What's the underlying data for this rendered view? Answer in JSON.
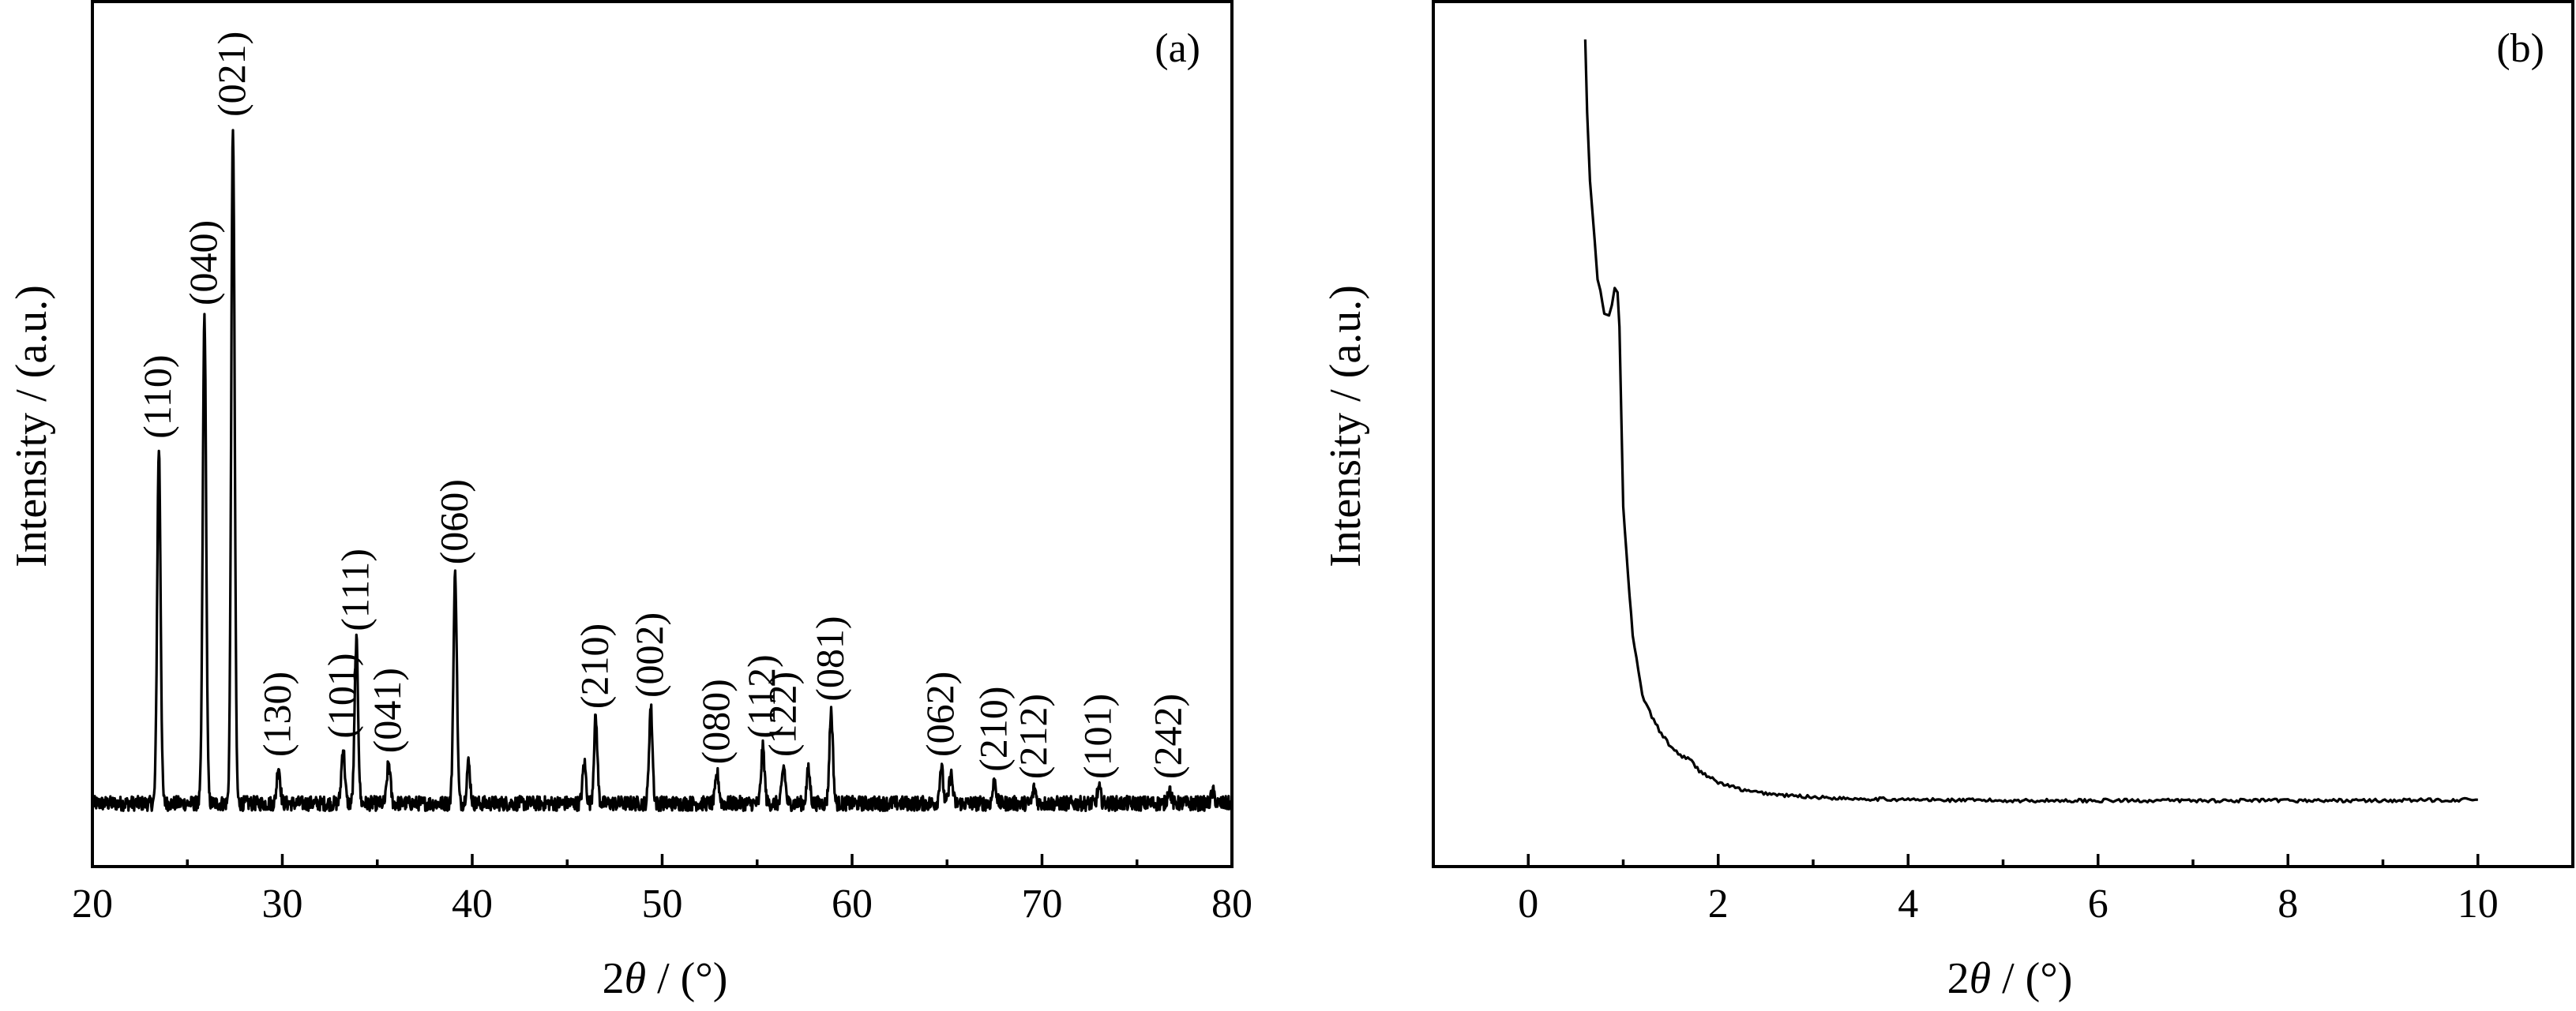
{
  "chart_data": [
    {
      "type": "line",
      "panel_label": "(a)",
      "xlabel_prefix": "2",
      "xlabel_symbol": "θ",
      "xlabel_suffix": " / (°)",
      "ylabel": "Intensity / (a.u.)",
      "xlim": [
        20,
        80
      ],
      "ylim": [
        0,
        1
      ],
      "x_ticks": [
        20,
        30,
        40,
        50,
        60,
        70,
        80
      ],
      "y_ticks_labeled": false,
      "grid": false,
      "baseline": 0.085,
      "peaks": [
        {
          "x": 23.5,
          "y": 0.565,
          "label": "(110)"
        },
        {
          "x": 25.9,
          "y": 0.745,
          "label": "(040)"
        },
        {
          "x": 27.4,
          "y": 1.0,
          "label": "(021)"
        },
        {
          "x": 29.8,
          "y": 0.135,
          "label": "(130)"
        },
        {
          "x": 33.2,
          "y": 0.16,
          "label": "(101)"
        },
        {
          "x": 33.9,
          "y": 0.305,
          "label": "(111)"
        },
        {
          "x": 35.6,
          "y": 0.14,
          "label": "(041)"
        },
        {
          "x": 39.1,
          "y": 0.395,
          "label": "(060)"
        },
        {
          "x": 39.8,
          "y": 0.14,
          "label": ""
        },
        {
          "x": 45.9,
          "y": 0.14,
          "label": ""
        },
        {
          "x": 46.5,
          "y": 0.2,
          "label": "(210)"
        },
        {
          "x": 49.4,
          "y": 0.215,
          "label": "(002)"
        },
        {
          "x": 52.9,
          "y": 0.125,
          "label": "(080)"
        },
        {
          "x": 55.3,
          "y": 0.16,
          "label": "(112)"
        },
        {
          "x": 56.4,
          "y": 0.135,
          "label": "(122)"
        },
        {
          "x": 57.7,
          "y": 0.13,
          "label": ""
        },
        {
          "x": 58.9,
          "y": 0.21,
          "label": "(081)"
        },
        {
          "x": 64.7,
          "y": 0.135,
          "label": "(062)"
        },
        {
          "x": 65.2,
          "y": 0.125,
          "label": ""
        },
        {
          "x": 67.5,
          "y": 0.115,
          "label": "(210)"
        },
        {
          "x": 69.6,
          "y": 0.105,
          "label": "(212)"
        },
        {
          "x": 73.0,
          "y": 0.105,
          "label": "(101)"
        },
        {
          "x": 76.7,
          "y": 0.105,
          "label": "(242)"
        },
        {
          "x": 79.0,
          "y": 0.1,
          "label": ""
        }
      ]
    },
    {
      "type": "line",
      "panel_label": "(b)",
      "xlabel_prefix": "2",
      "xlabel_symbol": "θ",
      "xlabel_suffix": " / (°)",
      "ylabel": "Intensity / (a.u.)",
      "xlim": [
        -1,
        11
      ],
      "ylim": [
        0,
        1
      ],
      "x_ticks": [
        0,
        2,
        4,
        6,
        8,
        10
      ],
      "y_ticks_labeled": false,
      "grid": false,
      "points": [
        [
          0.6,
          0.965
        ],
        [
          0.62,
          0.88
        ],
        [
          0.65,
          0.8
        ],
        [
          0.7,
          0.73
        ],
        [
          0.73,
          0.685
        ],
        [
          0.76,
          0.672
        ],
        [
          0.8,
          0.645
        ],
        [
          0.85,
          0.643
        ],
        [
          0.88,
          0.655
        ],
        [
          0.91,
          0.675
        ],
        [
          0.94,
          0.67
        ],
        [
          0.96,
          0.63
        ],
        [
          1.0,
          0.42
        ],
        [
          1.05,
          0.34
        ],
        [
          1.1,
          0.27
        ],
        [
          1.2,
          0.2
        ],
        [
          1.3,
          0.175
        ],
        [
          1.4,
          0.155
        ],
        [
          1.5,
          0.14
        ],
        [
          1.6,
          0.13
        ],
        [
          1.7,
          0.125
        ],
        [
          1.8,
          0.112
        ],
        [
          2.0,
          0.098
        ],
        [
          2.3,
          0.088
        ],
        [
          2.7,
          0.083
        ],
        [
          3.2,
          0.08
        ],
        [
          4.0,
          0.078
        ],
        [
          5.0,
          0.077
        ],
        [
          6.0,
          0.077
        ],
        [
          7.0,
          0.077
        ],
        [
          8.0,
          0.077
        ],
        [
          9.0,
          0.077
        ],
        [
          10.0,
          0.078
        ]
      ]
    }
  ]
}
